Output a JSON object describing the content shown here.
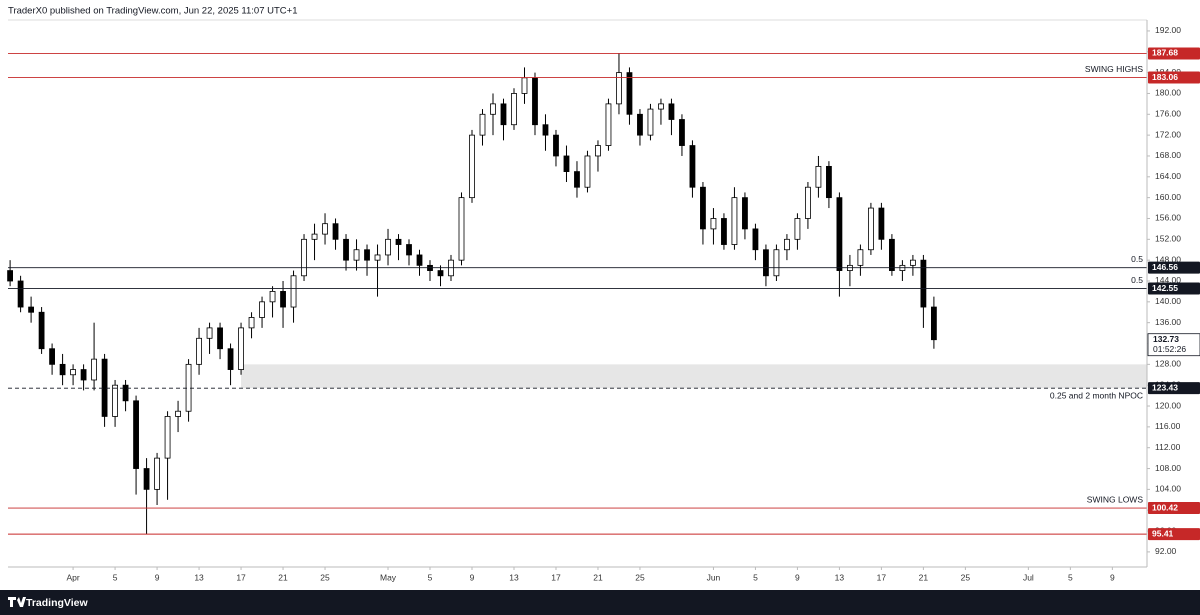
{
  "header": "TraderX0 published on TradingView.com, Jun 22, 2025 11:07 UTC+1",
  "footer": "TradingView",
  "chart_data": {
    "type": "candlestick",
    "xlim": [
      -6.2,
      102.3
    ],
    "ylim": [
      89.1,
      194.1
    ],
    "xticks": [
      {
        "value": 0,
        "label": "Apr"
      },
      {
        "value": 4,
        "label": "5"
      },
      {
        "value": 8,
        "label": "9"
      },
      {
        "value": 12,
        "label": "13"
      },
      {
        "value": 16,
        "label": "17"
      },
      {
        "value": 20,
        "label": "21"
      },
      {
        "value": 24,
        "label": "25"
      },
      {
        "value": 30,
        "label": "May"
      },
      {
        "value": 34,
        "label": "5"
      },
      {
        "value": 38,
        "label": "9"
      },
      {
        "value": 42,
        "label": "13"
      },
      {
        "value": 46,
        "label": "17"
      },
      {
        "value": 50,
        "label": "21"
      },
      {
        "value": 54,
        "label": "25"
      },
      {
        "value": 61,
        "label": "Jun"
      },
      {
        "value": 65,
        "label": "5"
      },
      {
        "value": 69,
        "label": "9"
      },
      {
        "value": 73,
        "label": "13"
      },
      {
        "value": 77,
        "label": "17"
      },
      {
        "value": 81,
        "label": "21"
      },
      {
        "value": 85,
        "label": "25"
      },
      {
        "value": 91,
        "label": "Jul"
      },
      {
        "value": 95,
        "label": "5"
      },
      {
        "value": 99,
        "label": "9"
      }
    ],
    "yticks": [
      {
        "value": 92,
        "label": "92.00"
      },
      {
        "value": 96,
        "label": "96.00"
      },
      {
        "value": 100,
        "label": "100.00"
      },
      {
        "value": 104,
        "label": "104.00"
      },
      {
        "value": 108,
        "label": "108.00"
      },
      {
        "value": 112,
        "label": "112.00"
      },
      {
        "value": 116,
        "label": "116.00"
      },
      {
        "value": 120,
        "label": "120.00"
      },
      {
        "value": 124,
        "label": "124.00"
      },
      {
        "value": 128,
        "label": "128.00"
      },
      {
        "value": 132,
        "label": "132.00"
      },
      {
        "value": 136,
        "label": "136.00"
      },
      {
        "value": 140,
        "label": "140.00"
      },
      {
        "value": 144,
        "label": "144.00"
      },
      {
        "value": 148,
        "label": "148.00"
      },
      {
        "value": 152,
        "label": "152.00"
      },
      {
        "value": 156,
        "label": "156.00"
      },
      {
        "value": 160,
        "label": "160.00"
      },
      {
        "value": 164,
        "label": "164.00"
      },
      {
        "value": 168,
        "label": "168.00"
      },
      {
        "value": 172,
        "label": "172.00"
      },
      {
        "value": 176,
        "label": "176.00"
      },
      {
        "value": 180,
        "label": "180.00"
      },
      {
        "value": 184,
        "label": "184.00"
      },
      {
        "value": 188,
        "label": "188.00"
      },
      {
        "value": 192,
        "label": "192.00"
      }
    ],
    "series": [
      {
        "up_color": "#ffffff",
        "down_color": "#000000",
        "x": [
          -6,
          -5,
          -4,
          -3,
          -2,
          -1,
          0,
          1,
          2,
          3,
          4,
          5,
          6,
          7,
          8,
          9,
          10,
          11,
          12,
          13,
          14,
          15,
          16,
          17,
          18,
          19,
          20,
          21,
          22,
          23,
          24,
          25,
          26,
          27,
          28,
          29,
          30,
          31,
          32,
          33,
          34,
          35,
          36,
          37,
          38,
          39,
          40,
          41,
          42,
          43,
          44,
          45,
          46,
          47,
          48,
          49,
          50,
          51,
          52,
          53,
          54,
          55,
          56,
          57,
          58,
          59,
          60,
          61,
          62,
          63,
          64,
          65,
          66,
          67,
          68,
          69,
          70,
          71,
          72,
          73,
          74,
          75,
          76,
          77,
          78,
          79,
          80,
          81,
          82
        ],
        "open": [
          146,
          144,
          139,
          138,
          131,
          128,
          126,
          127,
          125,
          129,
          118,
          124,
          121,
          108,
          104,
          110,
          118,
          119,
          128,
          133,
          135,
          131,
          127,
          135,
          137,
          140,
          142,
          139,
          145,
          152,
          153,
          155,
          152,
          148,
          150,
          148,
          149,
          152,
          151,
          149,
          147,
          146,
          145,
          148,
          160,
          172,
          176,
          178,
          174,
          180,
          183,
          174,
          172,
          168,
          165,
          162,
          168,
          170,
          178,
          184,
          176,
          172,
          177,
          178,
          175,
          170,
          162,
          154,
          156,
          151,
          160,
          154,
          150,
          145,
          150,
          152,
          156,
          162,
          166,
          160,
          146,
          147,
          150,
          158,
          152,
          146,
          147,
          148,
          139
        ],
        "high": [
          148,
          145,
          141,
          139,
          132,
          130,
          128,
          128,
          136,
          130,
          125,
          125,
          122,
          110,
          111,
          119,
          121,
          129,
          135,
          136,
          136,
          132,
          136,
          138,
          141,
          143,
          144,
          146,
          153,
          155,
          157,
          156,
          153,
          152,
          151,
          151,
          154,
          153,
          152,
          150,
          148,
          147,
          149,
          161,
          173,
          177,
          180,
          179,
          181,
          185,
          184,
          176,
          173,
          170,
          167,
          169,
          171,
          179,
          187.68,
          185,
          177,
          178,
          179,
          179,
          176,
          171,
          163,
          158,
          157,
          162,
          161,
          155,
          151,
          151,
          153,
          157,
          163,
          168,
          167,
          161,
          149,
          151,
          159,
          159,
          153,
          148,
          149,
          149,
          141
        ],
        "low": [
          143,
          138,
          136,
          130,
          126,
          124,
          124,
          123,
          123,
          116,
          116,
          119,
          103,
          95.41,
          101,
          102,
          115,
          117,
          126,
          130,
          129,
          124,
          126,
          133,
          135,
          137,
          135,
          136,
          144,
          148,
          151,
          150,
          146,
          146,
          145,
          141,
          147,
          148,
          147,
          145,
          144,
          143,
          144,
          147,
          159,
          170,
          172,
          171,
          173,
          178,
          172,
          169,
          166,
          163,
          160,
          161,
          165,
          169,
          176,
          174,
          170,
          171,
          174,
          172,
          168,
          160,
          151,
          151,
          150,
          150,
          152,
          148,
          143,
          144,
          148,
          150,
          154,
          160,
          158,
          141,
          143,
          145,
          149,
          150,
          145,
          144,
          145,
          135,
          131
        ],
        "close": [
          144,
          139,
          138,
          131,
          128,
          126,
          127,
          125,
          129,
          118,
          124,
          121,
          108,
          104,
          110,
          118,
          119,
          128,
          133,
          135,
          131,
          127,
          135,
          137,
          140,
          142,
          139,
          145,
          152,
          153,
          155,
          152,
          148,
          150,
          148,
          149,
          152,
          151,
          149,
          147,
          146,
          145,
          148,
          160,
          172,
          176,
          178,
          174,
          180,
          183,
          174,
          172,
          168,
          165,
          162,
          168,
          170,
          178,
          184,
          176,
          172,
          177,
          178,
          175,
          170,
          162,
          154,
          156,
          151,
          160,
          154,
          150,
          145,
          150,
          152,
          156,
          162,
          166,
          160,
          146,
          147,
          150,
          158,
          152,
          146,
          147,
          148,
          139,
          132.73
        ]
      }
    ],
    "countdown": "01:52:26",
    "zone": {
      "from": 123.43,
      "to": 128,
      "x_from": 16,
      "color": "#e6e6e6"
    },
    "levels": [
      {
        "value": 187.68,
        "color": "#c62828",
        "style": "solid"
      },
      {
        "value": 183.06,
        "color": "#c62828",
        "style": "solid",
        "note": "SWING HIGHS"
      },
      {
        "value": 146.56,
        "color": "#131722",
        "style": "solid",
        "note": "0.5"
      },
      {
        "value": 142.55,
        "color": "#131722",
        "style": "solid",
        "note": "0.5"
      },
      {
        "value": 123.43,
        "color": "#131722",
        "style": "dashed",
        "note": "0.25 and 2 month NPOC"
      },
      {
        "value": 100.42,
        "color": "#c62828",
        "style": "solid",
        "note": "SWING LOWS"
      },
      {
        "value": 95.41,
        "color": "#c62828",
        "style": "solid"
      }
    ]
  }
}
